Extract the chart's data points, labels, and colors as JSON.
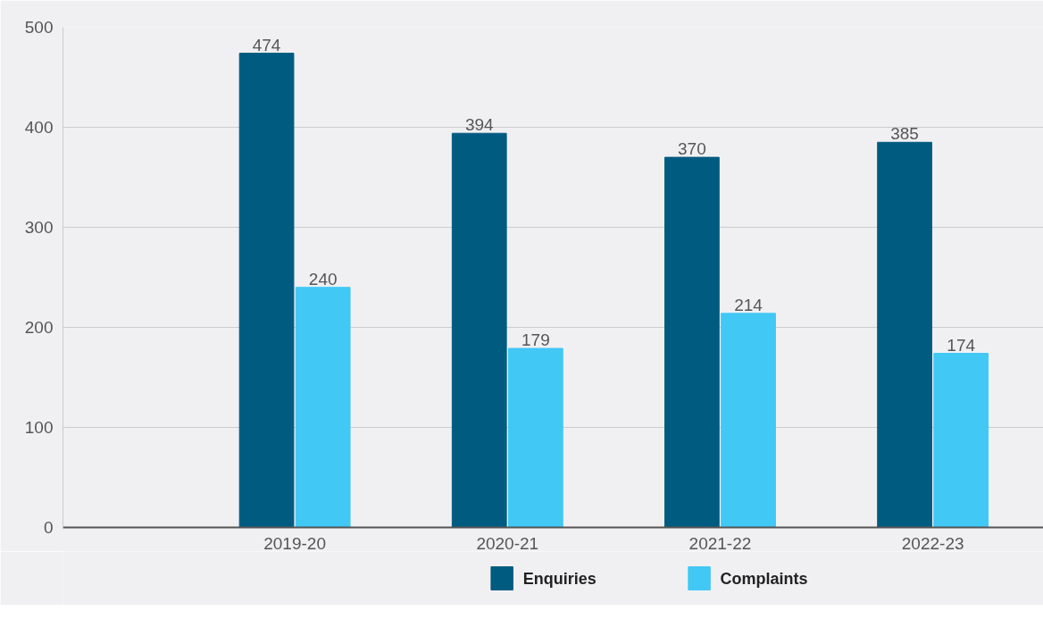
{
  "chart_data": {
    "type": "bar",
    "categories": [
      null,
      "2019-20",
      "2020-21",
      "2021-22",
      "2022-23"
    ],
    "series": [
      {
        "name": "Enquiries",
        "color": "#005b80",
        "values": [
          null,
          474,
          394,
          370,
          385
        ]
      },
      {
        "name": "Complaints",
        "color": "#41c8f5",
        "values": [
          null,
          240,
          179,
          214,
          174
        ]
      }
    ],
    "ylim": [
      0,
      500
    ],
    "yticks": [
      0,
      100,
      200,
      300,
      400,
      500
    ],
    "grid": "y",
    "legend": "bottom",
    "data_labels": true
  }
}
